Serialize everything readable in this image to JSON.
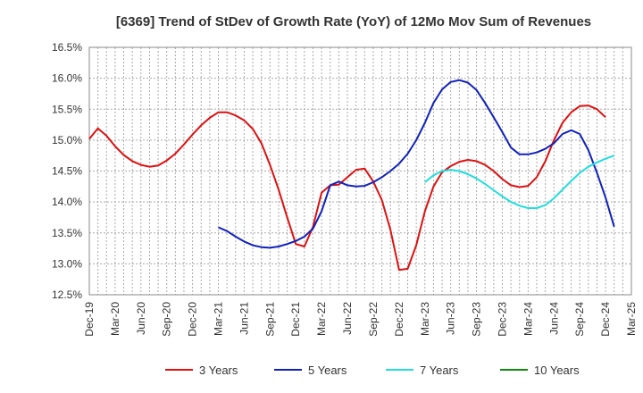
{
  "chart_data": {
    "type": "line",
    "title": "[6369]  Trend of StDev of Growth Rate (YoY) of 12Mo Mov Sum of Revenues",
    "xlabel": "",
    "ylabel": "",
    "ylim": [
      12.5,
      16.5
    ],
    "y_ticks": [
      "12.5%",
      "13.0%",
      "13.5%",
      "14.0%",
      "14.5%",
      "15.0%",
      "15.5%",
      "16.0%",
      "16.5%"
    ],
    "x_ticks": [
      "Dec-19",
      "Mar-20",
      "Jun-20",
      "Sep-20",
      "Dec-20",
      "Mar-21",
      "Jun-21",
      "Sep-21",
      "Dec-21",
      "Mar-22",
      "Jun-22",
      "Sep-22",
      "Dec-22",
      "Mar-23",
      "Jun-23",
      "Sep-23",
      "Dec-23",
      "Mar-24",
      "Jun-24",
      "Sep-24",
      "Dec-24",
      "Mar-25"
    ],
    "x_start": "Dec-19",
    "x_months": 63,
    "grid": true,
    "legend": [
      "3 Years",
      "5 Years",
      "7 Years",
      "10 Years"
    ],
    "series": [
      {
        "name": "3 Years",
        "color": "#dd1111",
        "start": 0,
        "values": [
          15.02,
          15.19,
          15.07,
          14.9,
          14.76,
          14.66,
          14.6,
          14.57,
          14.59,
          14.67,
          14.78,
          14.93,
          15.09,
          15.24,
          15.36,
          15.45,
          15.45,
          15.4,
          15.32,
          15.18,
          14.95,
          14.6,
          14.2,
          13.75,
          13.32,
          13.28,
          13.6,
          14.15,
          14.27,
          14.28,
          14.4,
          14.52,
          14.54,
          14.33,
          14.03,
          13.55,
          12.9,
          12.92,
          13.3,
          13.85,
          14.25,
          14.48,
          14.58,
          14.65,
          14.68,
          14.66,
          14.6,
          14.5,
          14.37,
          14.27,
          14.24,
          14.26,
          14.4,
          14.66,
          15.0,
          15.28,
          15.45,
          15.55,
          15.56,
          15.5,
          15.37
        ]
      },
      {
        "name": "5 Years",
        "color": "#1122bb",
        "start": 15,
        "values": [
          13.59,
          13.53,
          13.44,
          13.36,
          13.3,
          13.27,
          13.26,
          13.28,
          13.32,
          13.37,
          13.44,
          13.57,
          13.85,
          14.27,
          14.33,
          14.27,
          14.25,
          14.26,
          14.32,
          14.4,
          14.5,
          14.62,
          14.78,
          15.0,
          15.28,
          15.6,
          15.82,
          15.94,
          15.97,
          15.93,
          15.81,
          15.6,
          15.37,
          15.13,
          14.88,
          14.77,
          14.77,
          14.8,
          14.86,
          14.95,
          15.1,
          15.16,
          15.1,
          14.84,
          14.47,
          14.07,
          13.6
        ]
      },
      {
        "name": "7 Years",
        "color": "#22dddd",
        "start": 39,
        "values": [
          14.32,
          14.43,
          14.5,
          14.52,
          14.5,
          14.45,
          14.38,
          14.29,
          14.19,
          14.09,
          14.0,
          13.94,
          13.9,
          13.9,
          13.95,
          14.06,
          14.2,
          14.34,
          14.47,
          14.57,
          14.64,
          14.7,
          14.75
        ]
      },
      {
        "name": "10 Years",
        "color": "#118811",
        "start": 0,
        "values": []
      }
    ]
  }
}
